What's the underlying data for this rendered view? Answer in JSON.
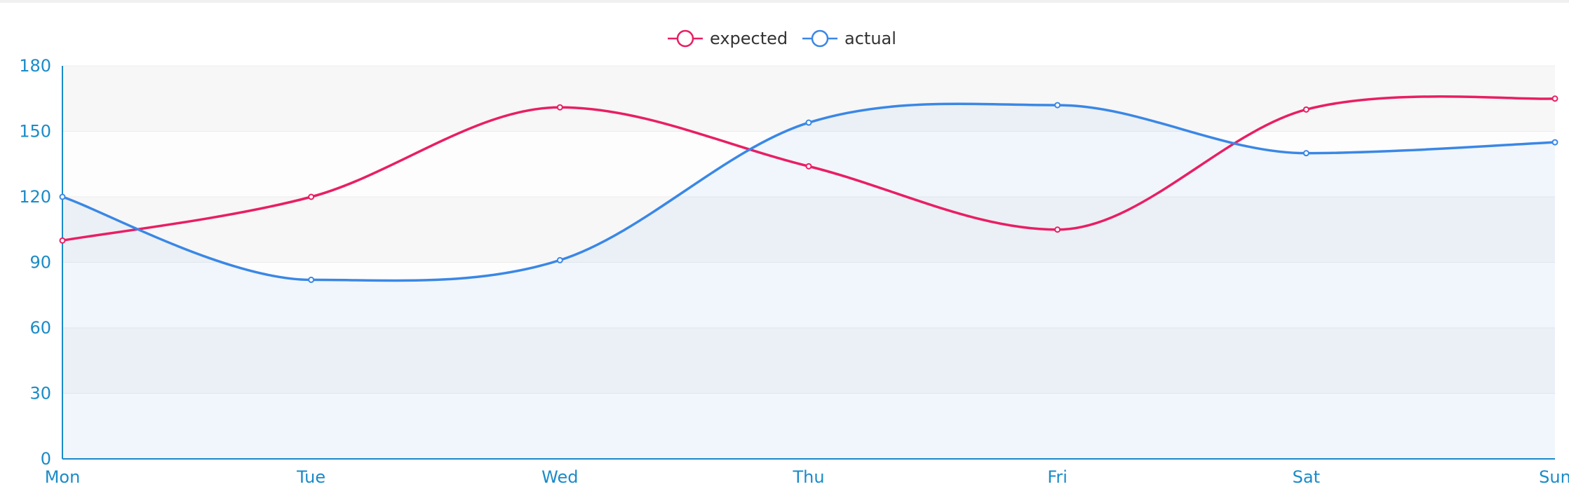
{
  "chart_data": {
    "type": "line",
    "smooth": true,
    "categories": [
      "Mon",
      "Tue",
      "Wed",
      "Thu",
      "Fri",
      "Sat",
      "Sun"
    ],
    "series": [
      {
        "name": "expected",
        "values": [
          100,
          120,
          161,
          134,
          105,
          160,
          165
        ],
        "color": "#e91e63",
        "area": false
      },
      {
        "name": "actual",
        "values": [
          120,
          82,
          91,
          154,
          162,
          140,
          145
        ],
        "color": "#3a87e6",
        "area": true
      }
    ],
    "ylim": [
      0,
      180
    ],
    "yticks": [
      "0",
      "30",
      "60",
      "90",
      "120",
      "150",
      "180"
    ],
    "axis_color": "#1a8bc8",
    "split_area_colors": [
      "#f7f7f7",
      "#fdfdfd"
    ],
    "legend_position": "top-center",
    "grid": true
  }
}
